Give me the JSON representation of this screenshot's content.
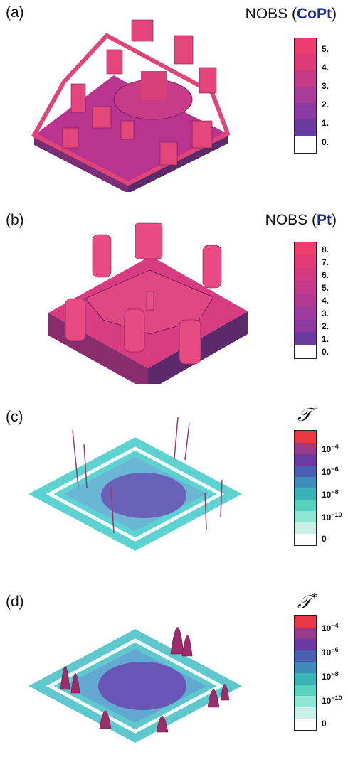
{
  "panels": {
    "a": {
      "label": "(a)",
      "title_prefix": "NOBS (",
      "title_species": "CoPt",
      "title_suffix": ")",
      "colorbar_ticks": [
        "5.",
        "4.",
        "3.",
        "2.",
        "1.",
        "0."
      ],
      "colors": [
        "#ffffff",
        "#6a3aa0",
        "#8a3aa2",
        "#a83a98",
        "#c63a86",
        "#de3a78",
        "#ee3c70"
      ]
    },
    "b": {
      "label": "(b)",
      "title_prefix": "NOBS (",
      "title_species": "Pt",
      "title_suffix": ")",
      "colorbar_ticks": [
        "8.",
        "7.",
        "6.",
        "5.",
        "4.",
        "3.",
        "2.",
        "1.",
        "0."
      ],
      "colors": [
        "#ffffff",
        "#6a3aa0",
        "#7c3aa2",
        "#8e3aa2",
        "#a03a9c",
        "#b23a92",
        "#c43a88",
        "#d43a7e",
        "#e23a74",
        "#ee3c6e"
      ]
    },
    "c": {
      "label": "(c)",
      "symbol": "𝒯",
      "colorbar_ticks": [
        "10",
        "10",
        "10",
        "10",
        "0"
      ],
      "exponents": [
        "−4",
        "−6",
        "−8",
        "−10",
        ""
      ],
      "colors": [
        "#ffffff",
        "#c8f0e6",
        "#8ee6d2",
        "#58d2c0",
        "#38b4b8",
        "#3e8cba",
        "#4a5eb4",
        "#6a3aa2",
        "#9a3a8a",
        "#e83848"
      ]
    },
    "d": {
      "label": "(d)",
      "symbol": "𝒯",
      "symbol_sup": "*",
      "colorbar_ticks": [
        "10",
        "10",
        "10",
        "10",
        "0"
      ],
      "exponents": [
        "−4",
        "−6",
        "−8",
        "−10",
        ""
      ],
      "colors": [
        "#ffffff",
        "#c8f0e6",
        "#8ee6d2",
        "#58d2c0",
        "#38b4b8",
        "#3e8cba",
        "#4a5eb4",
        "#6a3aa2",
        "#9a3a8a",
        "#e83848"
      ]
    }
  }
}
